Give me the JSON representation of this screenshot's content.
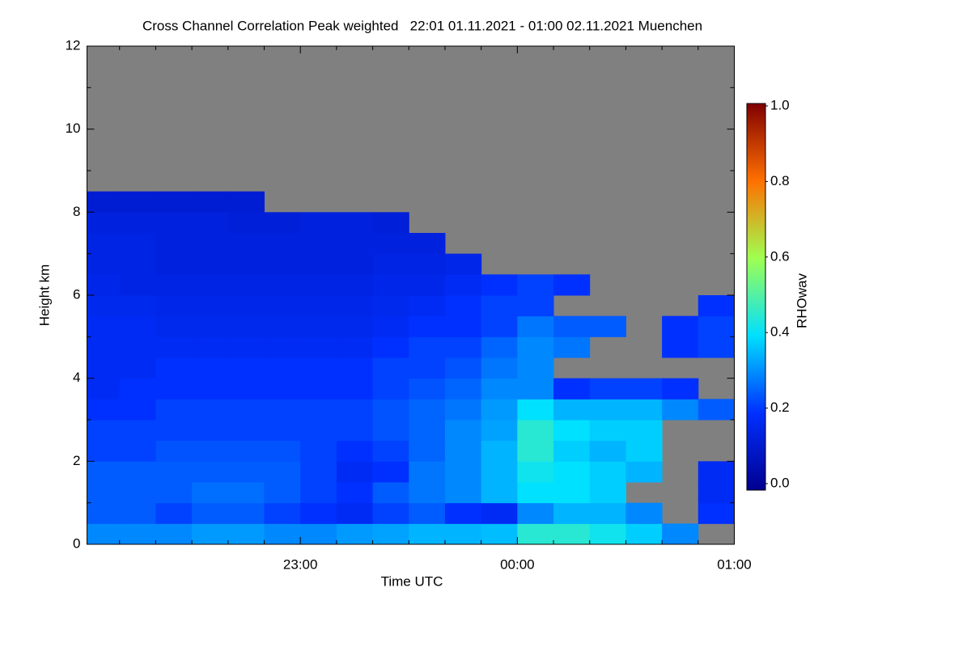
{
  "chart_data": {
    "type": "heatmap",
    "title": "Cross Channel Correlation Peak weighted   22:01 01.11.2021 - 01:00 02.11.2021 Muenchen",
    "xlabel": "Time UTC",
    "ylabel": "Height km",
    "xlim": [
      1,
      180
    ],
    "xticks": [
      {
        "value": 60,
        "label": "23:00"
      },
      {
        "value": 120,
        "label": "00:00"
      },
      {
        "value": 180,
        "label": "01:00"
      }
    ],
    "xminorticks": [
      10,
      20,
      30,
      40,
      50,
      70,
      80,
      90,
      100,
      110,
      130,
      140,
      150,
      160,
      170
    ],
    "ylim": [
      0,
      12
    ],
    "yticks": [
      0,
      2,
      4,
      6,
      8,
      10,
      12
    ],
    "yminorticks": [
      1,
      3,
      5,
      7,
      9,
      11
    ],
    "missing_color": "#808080",
    "x": [
      0,
      10,
      20,
      30,
      40,
      50,
      60,
      70,
      80,
      90,
      100,
      110,
      120,
      130,
      140,
      150,
      160,
      170,
      180
    ],
    "y": [
      0,
      0.5,
      1,
      1.5,
      2,
      2.5,
      3,
      3.5,
      4,
      4.5,
      5,
      5.5,
      6,
      6.5,
      7,
      7.5,
      8,
      8.5
    ],
    "z": [
      [
        0.3,
        0.3,
        0.3,
        0.32,
        0.32,
        0.3,
        0.3,
        0.32,
        0.33,
        0.35,
        0.35,
        0.36,
        0.45,
        0.45,
        0.42,
        0.38,
        0.3,
        null
      ],
      [
        0.25,
        0.25,
        0.22,
        0.25,
        0.25,
        0.22,
        0.2,
        0.18,
        0.22,
        0.25,
        0.2,
        0.18,
        0.3,
        0.35,
        0.35,
        0.3,
        null,
        0.2
      ],
      [
        0.25,
        0.25,
        0.25,
        0.27,
        0.27,
        0.25,
        0.22,
        0.2,
        0.25,
        0.28,
        0.3,
        0.35,
        0.4,
        0.4,
        0.38,
        null,
        null,
        0.18
      ],
      [
        0.25,
        0.25,
        0.25,
        0.25,
        0.25,
        0.25,
        0.22,
        0.18,
        0.2,
        0.28,
        0.3,
        0.35,
        0.42,
        0.4,
        0.38,
        0.35,
        null,
        0.18
      ],
      [
        0.22,
        0.22,
        0.24,
        0.24,
        0.24,
        0.24,
        0.22,
        0.2,
        0.22,
        0.26,
        0.3,
        0.35,
        0.45,
        0.38,
        0.35,
        0.38,
        null,
        null
      ],
      [
        0.22,
        0.22,
        0.22,
        0.22,
        0.22,
        0.22,
        0.22,
        0.22,
        0.24,
        0.26,
        0.3,
        0.33,
        0.45,
        0.4,
        0.38,
        0.38,
        null,
        null
      ],
      [
        0.2,
        0.2,
        0.22,
        0.22,
        0.22,
        0.22,
        0.22,
        0.22,
        0.24,
        0.26,
        0.28,
        0.32,
        0.4,
        0.35,
        0.35,
        0.35,
        0.3,
        0.25
      ],
      [
        0.18,
        0.2,
        0.2,
        0.2,
        0.2,
        0.2,
        0.2,
        0.2,
        0.22,
        0.24,
        0.26,
        0.3,
        0.3,
        0.2,
        0.22,
        0.22,
        0.2,
        null
      ],
      [
        0.18,
        0.18,
        0.2,
        0.2,
        0.2,
        0.2,
        0.2,
        0.2,
        0.22,
        0.22,
        0.24,
        0.28,
        0.3,
        null,
        null,
        null,
        null,
        null
      ],
      [
        0.18,
        0.18,
        0.18,
        0.18,
        0.18,
        0.18,
        0.18,
        0.18,
        0.2,
        0.22,
        0.22,
        0.26,
        0.3,
        0.28,
        null,
        null,
        0.2,
        0.22
      ],
      [
        0.18,
        0.18,
        0.17,
        0.17,
        0.17,
        0.17,
        0.17,
        0.17,
        0.18,
        0.2,
        0.2,
        0.22,
        0.28,
        0.25,
        0.25,
        null,
        0.2,
        0.22
      ],
      [
        0.17,
        0.17,
        0.16,
        0.16,
        0.16,
        0.16,
        0.16,
        0.16,
        0.17,
        0.18,
        0.2,
        0.22,
        0.22,
        null,
        null,
        null,
        null,
        0.2
      ],
      [
        0.16,
        0.15,
        0.15,
        0.15,
        0.15,
        0.15,
        0.15,
        0.15,
        0.16,
        0.16,
        0.18,
        0.2,
        0.22,
        0.2,
        null,
        null,
        null,
        null
      ],
      [
        0.15,
        0.15,
        0.14,
        0.14,
        0.14,
        0.14,
        0.14,
        0.14,
        0.15,
        0.15,
        0.16,
        null,
        null,
        null,
        null,
        null,
        null,
        null
      ],
      [
        0.15,
        0.15,
        0.14,
        0.14,
        0.14,
        0.14,
        0.14,
        0.14,
        0.14,
        0.14,
        null,
        null,
        null,
        null,
        null,
        null,
        null,
        null
      ],
      [
        0.14,
        0.14,
        0.14,
        0.14,
        0.13,
        0.13,
        0.14,
        0.14,
        0.13,
        null,
        null,
        null,
        null,
        null,
        null,
        null,
        null,
        null
      ],
      [
        0.12,
        0.12,
        0.12,
        0.12,
        0.12,
        null,
        null,
        null,
        null,
        null,
        null,
        null,
        null,
        null,
        null,
        null,
        null,
        null
      ]
    ],
    "colorbar": {
      "label": "RHOwav",
      "lim": [
        0,
        1
      ],
      "ticks": [
        {
          "value": 0,
          "label": "0.0"
        },
        {
          "value": 0.2,
          "label": "0.2"
        },
        {
          "value": 0.4,
          "label": "0.4"
        },
        {
          "value": 0.6,
          "label": "0.6"
        },
        {
          "value": 0.8,
          "label": "0.8"
        },
        {
          "value": 1,
          "label": "1.0"
        }
      ],
      "colors": [
        "#000090",
        "#0030ff",
        "#00e0ff",
        "#a0ff50",
        "#ff7000",
        "#800000"
      ]
    }
  }
}
